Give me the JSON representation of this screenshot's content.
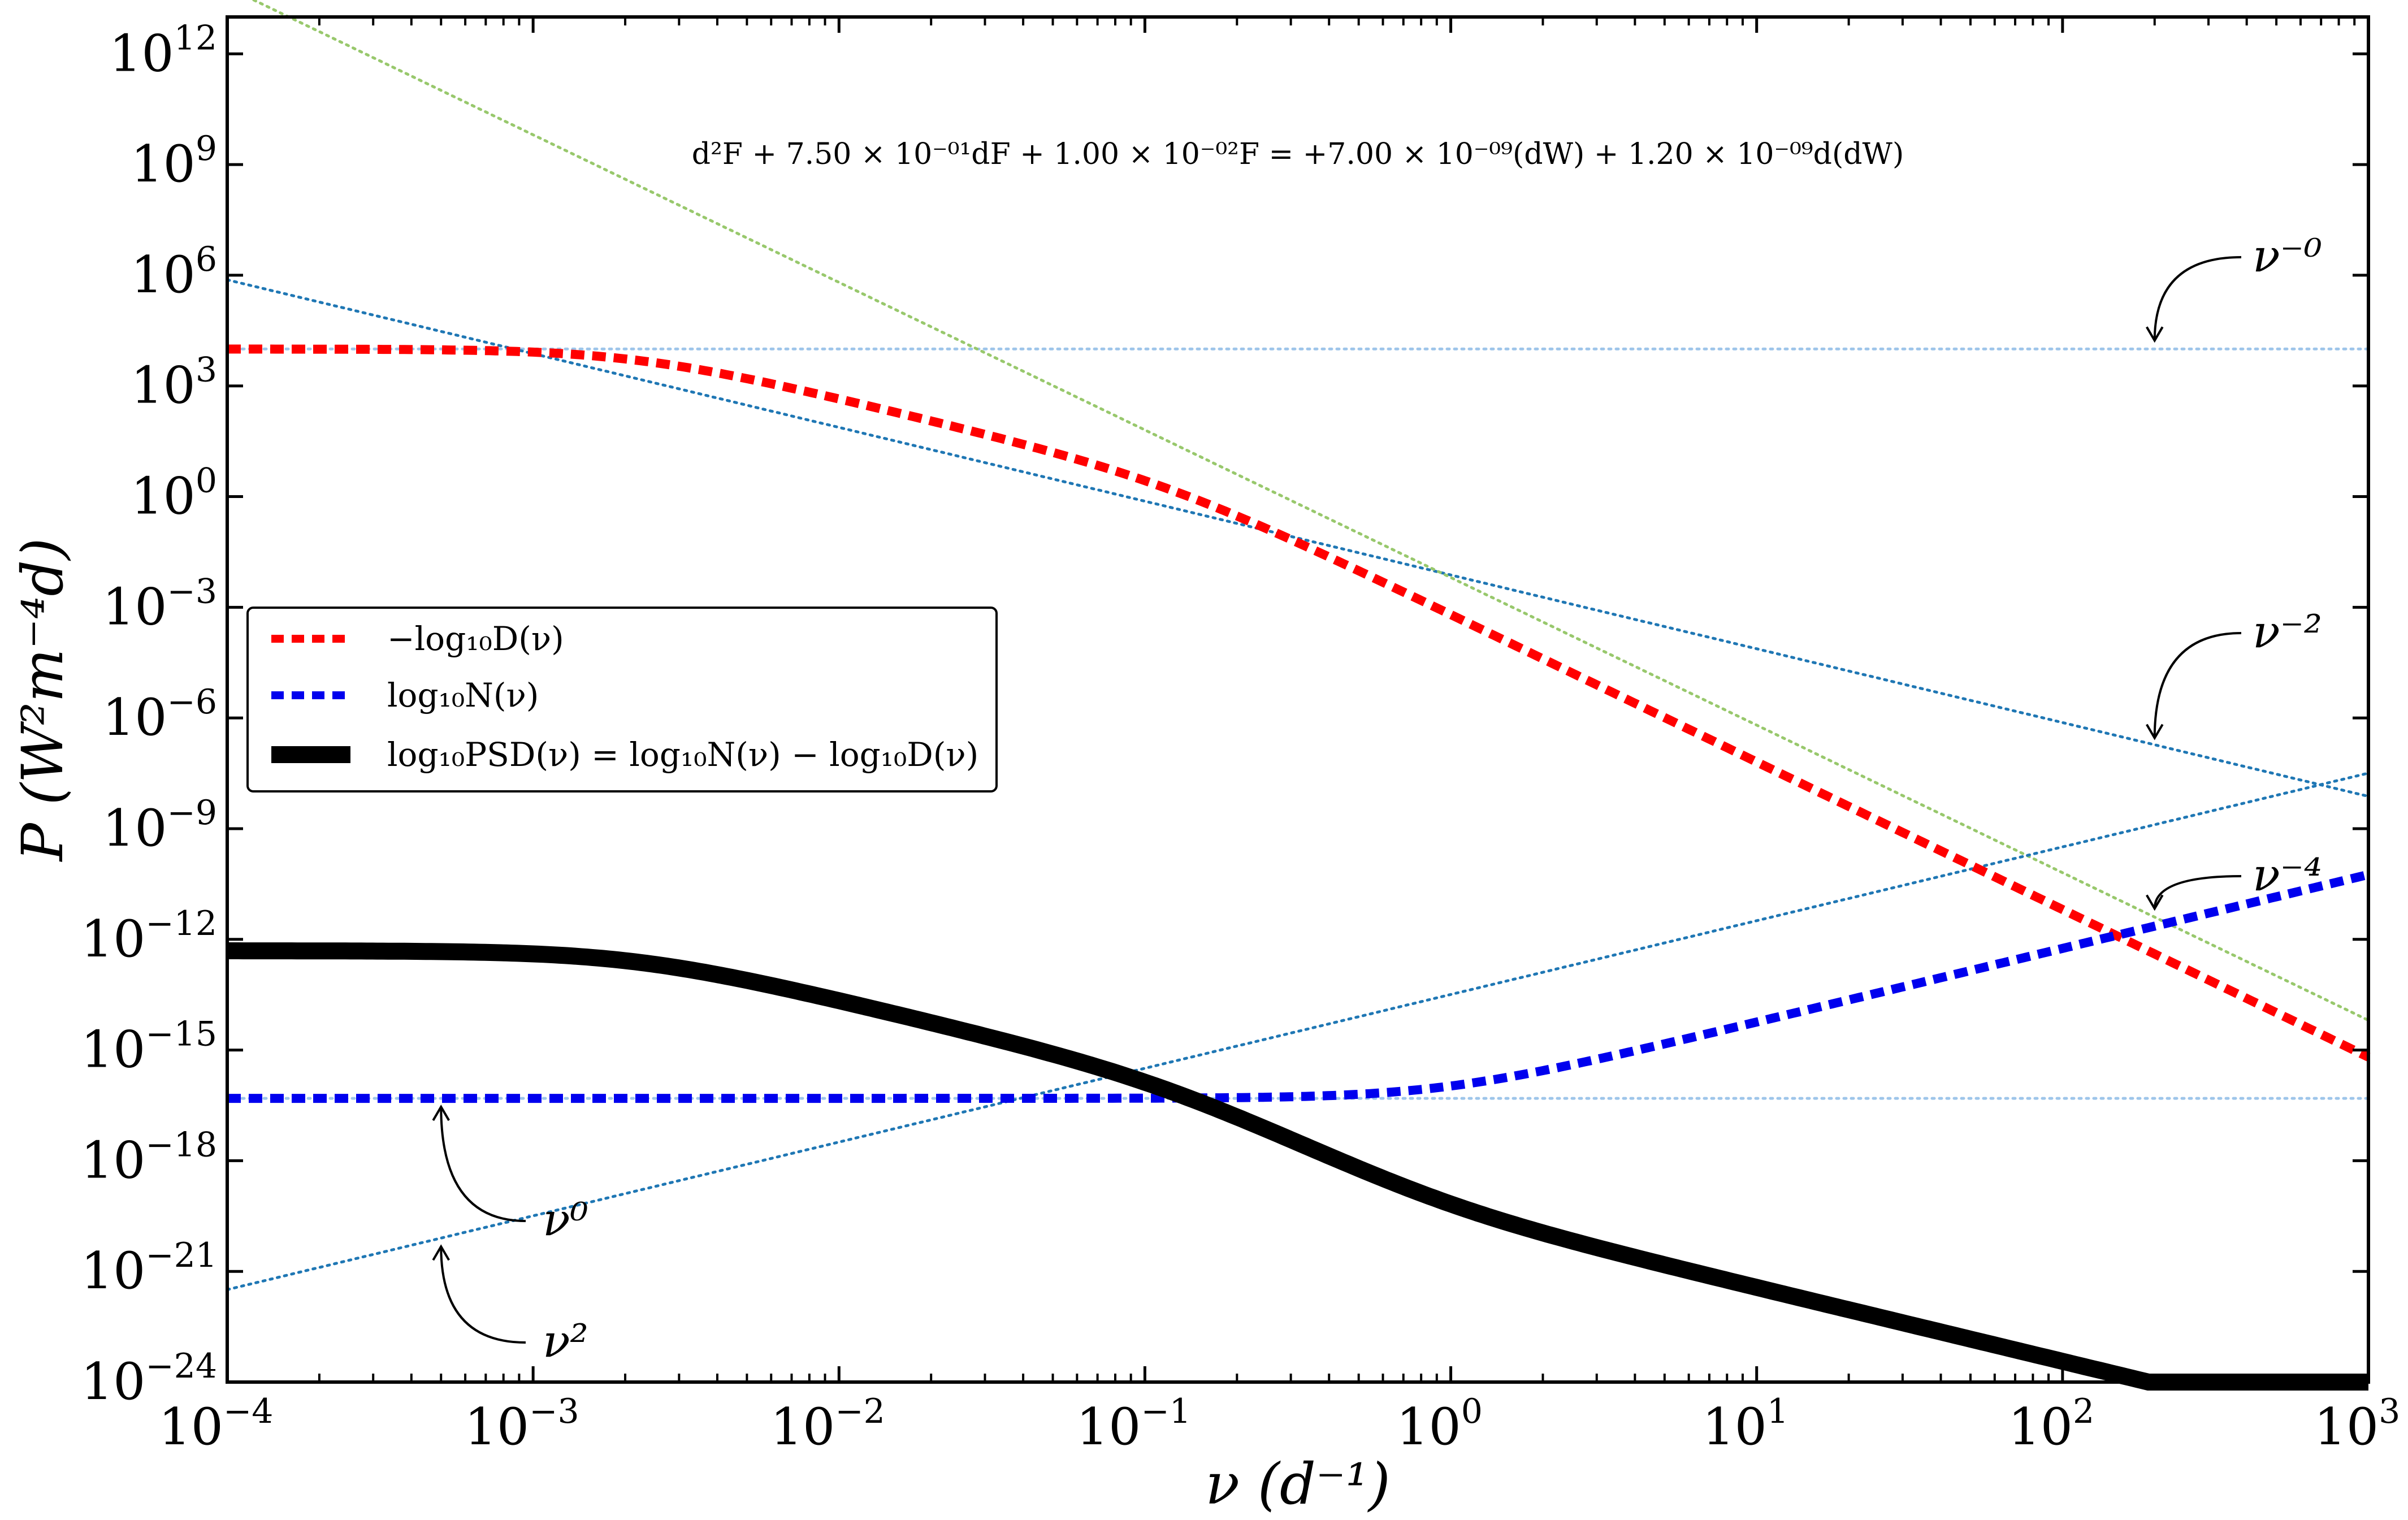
{
  "chart_data": {
    "type": "line",
    "title": "",
    "scale": {
      "x": "log",
      "y": "log"
    },
    "xlim": [
      0.0001,
      1000
    ],
    "ylim": [
      1e-24,
      10000000000000.0
    ],
    "xticks": [
      {
        "base": "10",
        "exp": "−4"
      },
      {
        "base": "10",
        "exp": "−3"
      },
      {
        "base": "10",
        "exp": "−2"
      },
      {
        "base": "10",
        "exp": "−1"
      },
      {
        "base": "10",
        "exp": "0"
      },
      {
        "base": "10",
        "exp": "1"
      },
      {
        "base": "10",
        "exp": "2"
      },
      {
        "base": "10",
        "exp": "3"
      }
    ],
    "yticks": [
      {
        "base": "10",
        "exp": "−24"
      },
      {
        "base": "10",
        "exp": "−21"
      },
      {
        "base": "10",
        "exp": "−18"
      },
      {
        "base": "10",
        "exp": "−15"
      },
      {
        "base": "10",
        "exp": "−12"
      },
      {
        "base": "10",
        "exp": "−9"
      },
      {
        "base": "10",
        "exp": "−6"
      },
      {
        "base": "10",
        "exp": "−3"
      },
      {
        "base": "10",
        "exp": "0"
      },
      {
        "base": "10",
        "exp": "3"
      },
      {
        "base": "10",
        "exp": "6"
      },
      {
        "base": "10",
        "exp": "9"
      },
      {
        "base": "10",
        "exp": "12"
      }
    ],
    "xlabel": "ν (d⁻¹)",
    "ylabel": "P (W²m⁻⁴d)",
    "equation": "d²F + 7.50 × 10⁻⁰¹dF + 1.00 × 10⁻⁰²F = +7.00 × 10⁻⁰⁹(dW) + 1.20 × 10⁻⁰⁹d(dW)",
    "ode": {
      "a1": 0.75,
      "a0": 0.01,
      "b0": 7e-09,
      "b1": 1.2e-09
    },
    "series": [
      {
        "name": "−log₁₀D(ν)",
        "key": "D",
        "color": "#ff0000",
        "style": "dashed",
        "x": [
          0.0001,
          0.001,
          0.003,
          0.01,
          0.03,
          0.1,
          0.3,
          1,
          10,
          100,
          1000
        ],
        "y": [
          10000,
          9100,
          5200,
          1040,
          150,
          12.4,
          0.69,
          0.014,
          1.4e-06,
          1.4e-10,
          1.4e-14
        ]
      },
      {
        "name": "log₁₀N(ν)",
        "key": "N",
        "color": "#0000ee",
        "style": "dashed",
        "x": [
          0.0001,
          0.001,
          0.01,
          0.03,
          0.1,
          1,
          10,
          100,
          1000
        ],
        "y": [
          4.9e-17,
          4.9e-17,
          5.5e-17,
          1e-16,
          6.2e-16,
          5.7e-14,
          5.7e-12,
          5.7e-10,
          5.7e-08
        ]
      },
      {
        "name": "log₁₀PSD(ν) = log₁₀N(ν) − log₁₀D(ν)",
        "key": "PSD",
        "color": "#000000",
        "style": "solid",
        "x": [
          0.0001,
          0.001,
          0.003,
          0.01,
          0.03,
          0.1,
          0.3,
          1,
          10,
          100,
          1000
        ],
        "y": [
          4.9e-13,
          5.4e-13,
          9.5e-13,
          5.3e-14,
          6.7e-19,
          5e-17,
          8e-18,
          2.1e-19,
          2.1e-21,
          2.1e-23,
          2.1e-25
        ]
      }
    ],
    "asymptotes": [
      {
        "label": "ν⁻⁰",
        "y_at_1": 10000,
        "slope": 0,
        "color": "#9ec5ea"
      },
      {
        "label": "ν⁻²",
        "y_at_1": 0.0075,
        "slope": -2,
        "color": "#1f77b4"
      },
      {
        "label": "ν⁻⁴",
        "y_at_1": 0.0064,
        "slope": -4,
        "color": "#98c86c"
      },
      {
        "label": "ν⁰",
        "y_at_1": 4.9e-17,
        "slope": 0,
        "color": "#9ec5ea"
      },
      {
        "label": "ν²",
        "y_at_1": 3.2e-14,
        "slope": 2,
        "color": "#1f77b4"
      }
    ],
    "legend_position": "center-left",
    "grid": false
  }
}
